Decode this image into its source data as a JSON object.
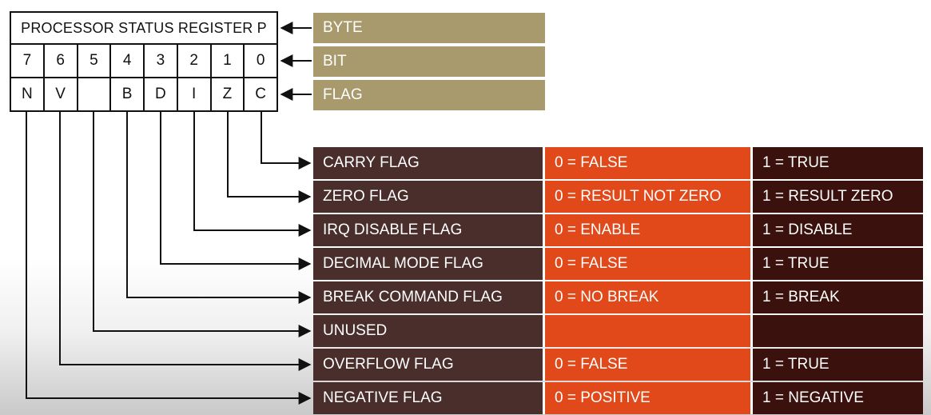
{
  "register": {
    "title": "PROCESSOR STATUS REGISTER P",
    "bits": [
      "7",
      "6",
      "5",
      "4",
      "3",
      "2",
      "1",
      "0"
    ],
    "flags": [
      "N",
      "V",
      "",
      "B",
      "D",
      "I",
      "Z",
      "C"
    ]
  },
  "labels": {
    "byte": "BYTE",
    "bit": "BIT",
    "flag": "FLAG"
  },
  "flag_rows": [
    {
      "name": "CARRY FLAG",
      "zero": "0 = FALSE",
      "one": "1 = TRUE"
    },
    {
      "name": "ZERO FLAG",
      "zero": "0 = RESULT NOT ZERO",
      "one": "1 = RESULT ZERO"
    },
    {
      "name": "IRQ DISABLE FLAG",
      "zero": "0 = ENABLE",
      "one": "1 = DISABLE"
    },
    {
      "name": "DECIMAL MODE FLAG",
      "zero": "0 = FALSE",
      "one": "1 = TRUE"
    },
    {
      "name": "BREAK COMMAND FLAG",
      "zero": "0 = NO BREAK",
      "one": "1 = BREAK"
    },
    {
      "name": "UNUSED",
      "zero": "",
      "one": ""
    },
    {
      "name": "OVERFLOW FLAG",
      "zero": "0 = FALSE",
      "one": "1 = TRUE"
    },
    {
      "name": "NEGATIVE FLAG",
      "zero": "0 = POSITIVE",
      "one": "1 = NEGATIVE"
    }
  ],
  "colors": {
    "label_box": "#a89a6c",
    "flag_name": "#4a2e2c",
    "flag_false": "#e2491a",
    "flag_true": "#3a110d",
    "line": "#111111"
  }
}
